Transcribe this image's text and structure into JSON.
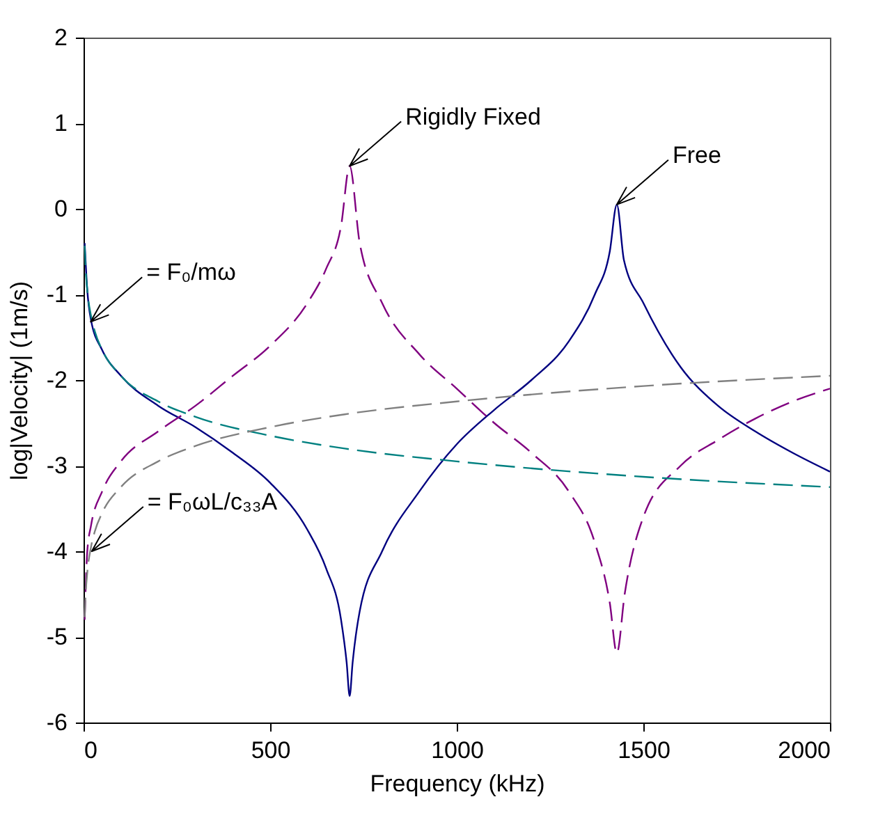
{
  "chart_data": {
    "type": "line",
    "xlabel": "Frequency (kHz)",
    "ylabel": "log|Velocity|  (1m/s)",
    "xlim": [
      0,
      2000
    ],
    "ylim": [
      -6,
      2
    ],
    "xticks": [
      0,
      500,
      1000,
      1500,
      2000
    ],
    "yticks": [
      -6,
      -5,
      -4,
      -3,
      -2,
      -1,
      0,
      1,
      2
    ],
    "grid": false,
    "series": [
      {
        "color": "#000080",
        "line_style": "solid",
        "x": [
          3,
          10,
          20,
          50,
          100,
          200,
          300,
          400,
          500,
          600,
          650,
          690,
          705,
          713,
          721,
          740,
          800,
          900,
          1000,
          1100,
          1200,
          1300,
          1370,
          1410,
          1429,
          1448,
          1500,
          1600,
          1700,
          1800,
          1900,
          2000
        ],
        "values": [
          -0.4,
          -0.95,
          -1.3,
          -1.65,
          -1.95,
          -2.3,
          -2.55,
          -2.85,
          -3.2,
          -3.75,
          -4.2,
          -4.8,
          -5.3,
          -5.69,
          -5.3,
          -4.7,
          -4.0,
          -3.3,
          -2.75,
          -2.35,
          -2.0,
          -1.55,
          -1.0,
          -0.5,
          0.05,
          -0.6,
          -1.1,
          -1.85,
          -2.3,
          -2.6,
          -2.85,
          -3.07
        ]
      },
      {
        "color": "#800080",
        "line_style": "dashed",
        "x": [
          3,
          10,
          20,
          50,
          100,
          200,
          300,
          400,
          500,
          600,
          650,
          690,
          713,
          740,
          800,
          900,
          1000,
          1100,
          1200,
          1300,
          1370,
          1410,
          1429,
          1450,
          1500,
          1600,
          1700,
          1800,
          1900,
          2000
        ],
        "values": [
          -4.8,
          -4.0,
          -3.7,
          -3.3,
          -2.95,
          -2.6,
          -2.3,
          -1.95,
          -1.6,
          -1.1,
          -0.7,
          -0.2,
          0.5,
          -0.4,
          -1.1,
          -1.7,
          -2.1,
          -2.5,
          -2.85,
          -3.3,
          -3.9,
          -4.6,
          -5.19,
          -4.5,
          -3.6,
          -3.0,
          -2.7,
          -2.45,
          -2.25,
          -2.1
        ]
      },
      {
        "color": "#008080",
        "line_style": "dashed",
        "x": [
          3,
          5,
          10,
          20,
          30,
          50,
          100,
          200,
          300,
          500,
          700,
          1000,
          1500,
          2000
        ],
        "values": [
          -0.43,
          -0.65,
          -0.95,
          -1.25,
          -1.43,
          -1.65,
          -1.95,
          -2.25,
          -2.43,
          -2.65,
          -2.8,
          -2.95,
          -3.13,
          -3.25
        ]
      },
      {
        "color": "#808080",
        "line_style": "dashed",
        "x": [
          3,
          5,
          10,
          20,
          30,
          50,
          100,
          200,
          300,
          500,
          700,
          1000,
          1500,
          2000
        ],
        "values": [
          -4.77,
          -4.55,
          -4.25,
          -3.95,
          -3.77,
          -3.55,
          -3.25,
          -2.95,
          -2.77,
          -2.55,
          -2.4,
          -2.25,
          -2.07,
          -1.95
        ]
      }
    ],
    "annotations": [
      {
        "text": "Rigidly Fixed",
        "x": 713,
        "y": 0.5
      },
      {
        "text": "Free",
        "x": 1429,
        "y": 0.05
      },
      {
        "text": "= F₀/mω",
        "x": 19,
        "y": -1.32
      },
      {
        "text": "= F₀ωL/c₃₃A",
        "x": 22,
        "y": -4.0
      }
    ]
  }
}
